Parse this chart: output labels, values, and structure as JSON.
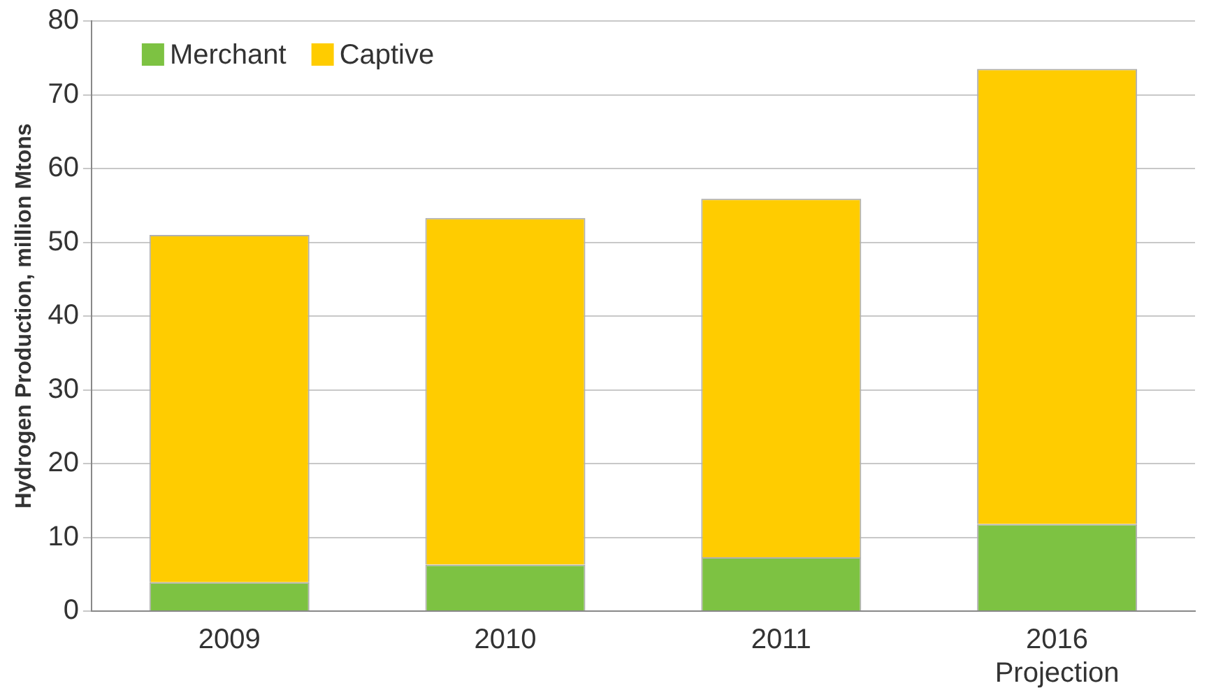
{
  "chart_data": {
    "type": "bar",
    "stacked": true,
    "ylabel": "Hydrogen Production, million Mtons",
    "categories": [
      "2009",
      "2010",
      "2011",
      "2016\nProjection"
    ],
    "series": [
      {
        "name": "Merchant",
        "color": "#7dc242",
        "values": [
          3.9,
          6.3,
          7.3,
          11.8
        ]
      },
      {
        "name": "Captive",
        "color": "#ffcc00",
        "values": [
          47.1,
          47.0,
          48.6,
          61.7
        ]
      }
    ],
    "ylim": [
      0,
      80
    ],
    "yticks": [
      0,
      10,
      20,
      30,
      40,
      50,
      60,
      70,
      80
    ],
    "grid": "y",
    "legend": "top left"
  }
}
